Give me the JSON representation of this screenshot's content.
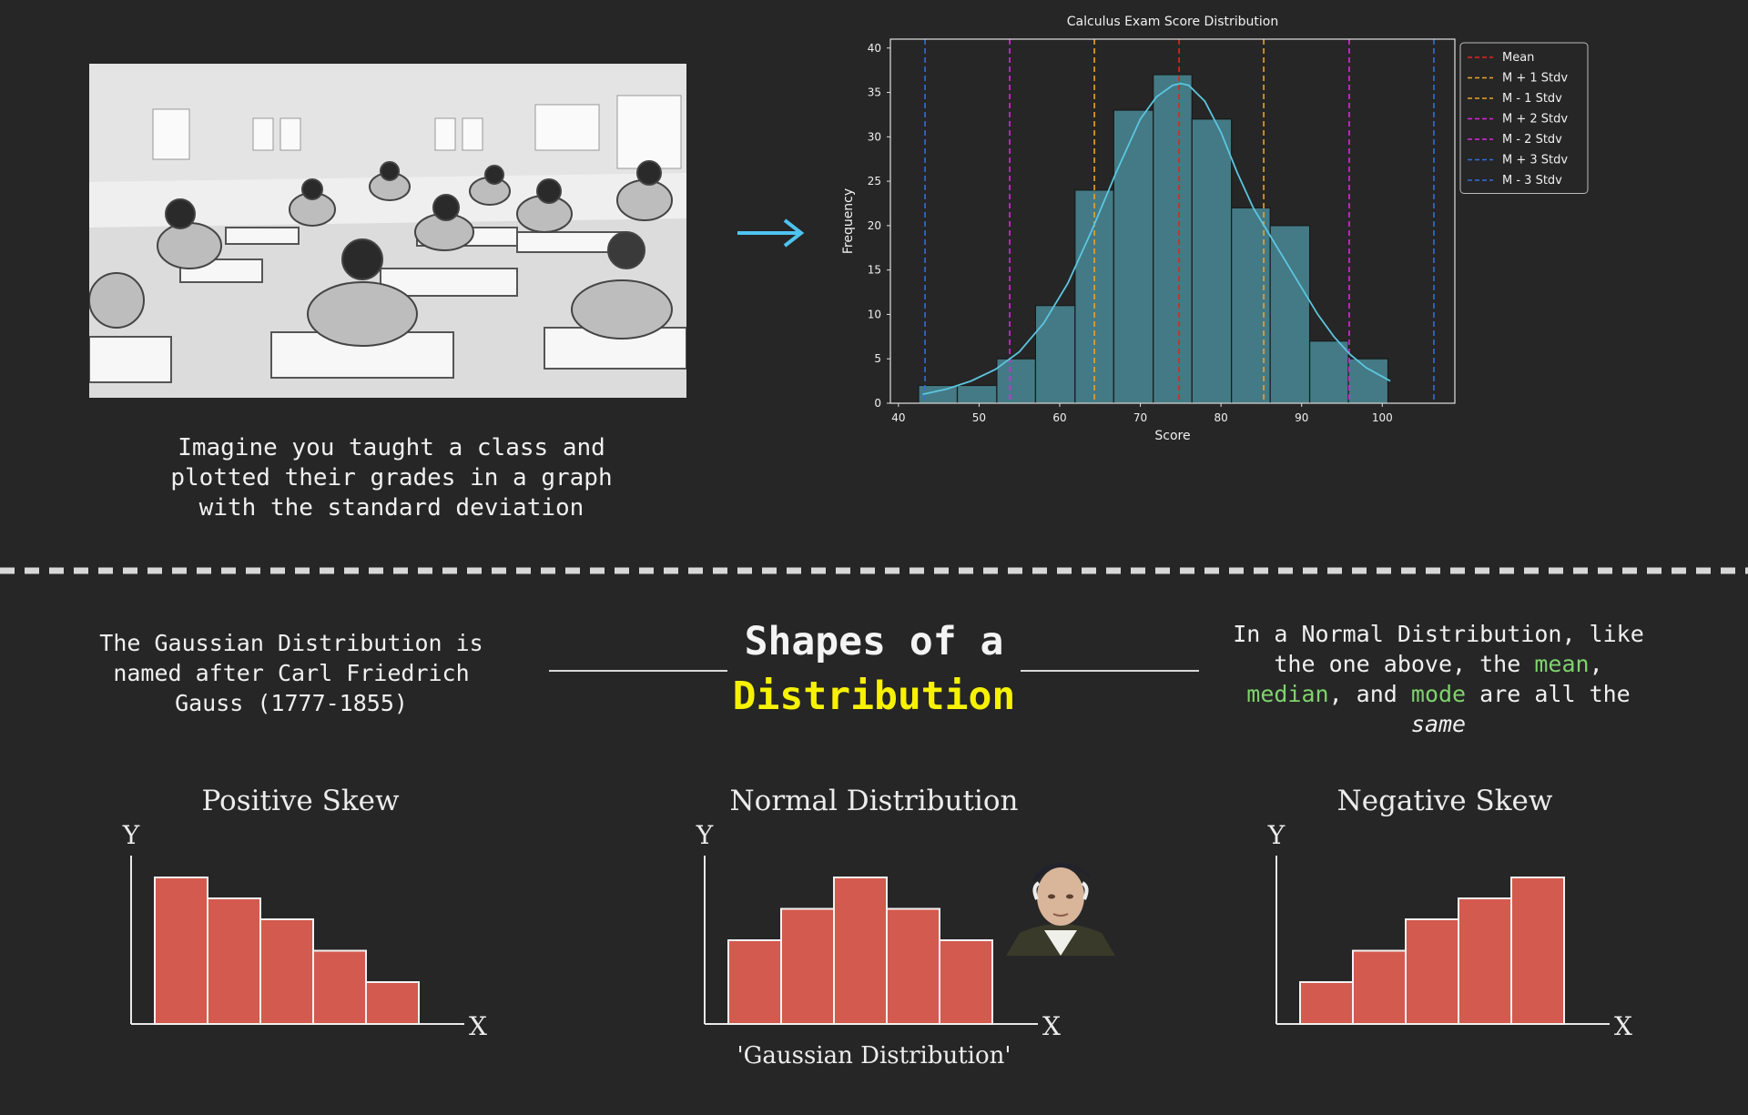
{
  "intro": {
    "line1": "Imagine you taught a class and",
    "line2": "plotted their grades in a graph",
    "line3": "with the standard deviation"
  },
  "icons": {
    "arrow": "arrow-right-icon",
    "arrow_color": "#4ec3f0"
  },
  "chart_data": [
    {
      "type": "bar",
      "title": "Calculus Exam Score Distribution",
      "xlabel": "Score",
      "ylabel": "Frequency",
      "xlim": [
        39,
        109
      ],
      "ylim": [
        0,
        41
      ],
      "xticks": [
        40,
        50,
        60,
        70,
        80,
        90,
        100
      ],
      "yticks": [
        0,
        5,
        10,
        15,
        20,
        25,
        30,
        35,
        40
      ],
      "bins": [
        {
          "start": 42.5,
          "end": 47.3,
          "count": 2
        },
        {
          "start": 47.3,
          "end": 52.2,
          "count": 2
        },
        {
          "start": 52.2,
          "end": 57.0,
          "count": 5
        },
        {
          "start": 57.0,
          "end": 61.9,
          "count": 11
        },
        {
          "start": 61.9,
          "end": 66.7,
          "count": 24
        },
        {
          "start": 66.7,
          "end": 71.6,
          "count": 33
        },
        {
          "start": 71.6,
          "end": 76.4,
          "count": 37
        },
        {
          "start": 76.4,
          "end": 81.3,
          "count": 32
        },
        {
          "start": 81.3,
          "end": 86.1,
          "count": 22
        },
        {
          "start": 86.1,
          "end": 91.0,
          "count": 20
        },
        {
          "start": 91.0,
          "end": 95.8,
          "count": 7
        },
        {
          "start": 95.8,
          "end": 100.7,
          "count": 5
        }
      ],
      "kde": {
        "x": [
          43,
          46,
          49,
          52,
          55,
          58,
          61,
          64,
          67,
          70,
          72,
          74,
          75,
          76,
          78,
          80,
          82,
          84,
          86,
          88,
          90,
          92,
          94,
          96,
          98,
          101
        ],
        "y": [
          1,
          1.6,
          2.5,
          3.8,
          5.8,
          9,
          13.5,
          19.5,
          26,
          32,
          34.5,
          35.8,
          36,
          35.8,
          34,
          30.5,
          26,
          22,
          19,
          16,
          13,
          10,
          7.5,
          5.5,
          4,
          2.5
        ],
        "color": "#5bc6e0"
      },
      "vlines": [
        {
          "name": "Mean",
          "x": 74.8,
          "color": "#e8221c"
        },
        {
          "name": "M + 1 Stdv",
          "x": 85.3,
          "color": "#f0a127"
        },
        {
          "name": "M - 1 Stdv",
          "x": 64.3,
          "color": "#f0a127"
        },
        {
          "name": "M + 2 Stdv",
          "x": 95.9,
          "color": "#e023e0"
        },
        {
          "name": "M - 2 Stdv",
          "x": 53.8,
          "color": "#e023e0"
        },
        {
          "name": "M + 3 Stdv",
          "x": 106.4,
          "color": "#2e6fe0"
        },
        {
          "name": "M - 3 Stdv",
          "x": 43.3,
          "color": "#2e6fe0"
        }
      ],
      "legend_position": "top-right",
      "bar_color": "#437a85",
      "grid": false
    },
    {
      "type": "bar",
      "title": "Positive Skew",
      "xlabel": "X",
      "ylabel": "Y",
      "values": [
        7,
        6,
        5,
        3.5,
        2
      ],
      "bar_color": "#d35a4e"
    },
    {
      "type": "bar",
      "title": "Normal Distribution",
      "xlabel": "X",
      "ylabel": "Y",
      "values": [
        4,
        5.5,
        7,
        5.5,
        4
      ],
      "bar_color": "#d35a4e"
    },
    {
      "type": "bar",
      "title": "Negative Skew",
      "xlabel": "X",
      "ylabel": "Y",
      "values": [
        2,
        3.5,
        5,
        6,
        7
      ],
      "bar_color": "#d35a4e"
    }
  ],
  "gauss_note": {
    "line1": "The Gaussian Distribution is",
    "line2": "named after Carl Friedrich",
    "line3": "Gauss (1777-1855)"
  },
  "section_title": {
    "line1": "Shapes of a",
    "line2": "Distribution"
  },
  "normal_note": {
    "l1": "In a Normal Distribution, like",
    "l2": "the one above, the ",
    "mean": "mean",
    "comma1": ",",
    "median": "median",
    "l3b": ", and ",
    "mode": "mode",
    "l3c": " are all the",
    "same": "same"
  },
  "gaussian_label": "'Gaussian Distribution'"
}
